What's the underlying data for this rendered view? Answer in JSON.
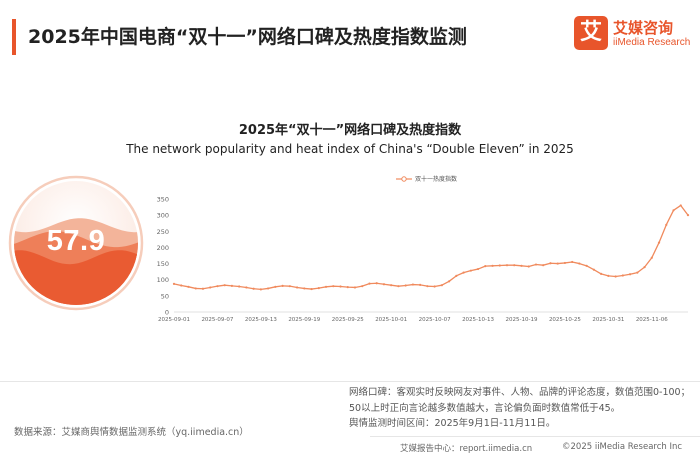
{
  "header": {
    "title": "2025年中国电商“双十一”网络口碑及热度指数监测",
    "accent_color": "#e8552b"
  },
  "logo": {
    "mark": "艾",
    "name_cn": "艾媒咨询",
    "name_en": "iiMedia Research"
  },
  "gauge": {
    "value": "57.9",
    "fill_level": 0.579,
    "colors": [
      "#f3b49a",
      "#ee7f59",
      "#e8552b"
    ]
  },
  "chart_data": {
    "type": "line",
    "title": "2025年“双十一”网络口碑及热度指数",
    "subtitle": "The network popularity and heat index of China's “Double Eleven” in 2025",
    "xlabel": "",
    "ylabel": "",
    "ylim": [
      0,
      350
    ],
    "yticks": [
      0,
      50,
      100,
      150,
      200,
      250,
      300,
      350
    ],
    "grid": false,
    "legend_position": "top-center",
    "xtick_labels": [
      "2025-09-01",
      "2025-09-07",
      "2025-09-13",
      "2025-09-19",
      "2025-09-25",
      "2025-10-01",
      "2025-10-07",
      "2025-10-13",
      "2025-10-19",
      "2025-10-25",
      "2025-10-31",
      "2025-11-06"
    ],
    "series": [
      {
        "name": "双十一热度指数",
        "color": "#f08a5d",
        "x": [
          "09-01",
          "09-02",
          "09-03",
          "09-04",
          "09-05",
          "09-06",
          "09-07",
          "09-08",
          "09-09",
          "09-10",
          "09-11",
          "09-12",
          "09-13",
          "09-14",
          "09-15",
          "09-16",
          "09-17",
          "09-18",
          "09-19",
          "09-20",
          "09-21",
          "09-22",
          "09-23",
          "09-24",
          "09-25",
          "09-26",
          "09-27",
          "09-28",
          "09-29",
          "09-30",
          "10-01",
          "10-02",
          "10-03",
          "10-04",
          "10-05",
          "10-06",
          "10-07",
          "10-08",
          "10-09",
          "10-10",
          "10-11",
          "10-12",
          "10-13",
          "10-14",
          "10-15",
          "10-16",
          "10-17",
          "10-18",
          "10-19",
          "10-20",
          "10-21",
          "10-22",
          "10-23",
          "10-24",
          "10-25",
          "10-26",
          "10-27",
          "10-28",
          "10-29",
          "10-30",
          "10-31",
          "11-01",
          "11-02",
          "11-03",
          "11-04",
          "11-05",
          "11-06",
          "11-07",
          "11-08",
          "11-09",
          "11-10",
          "11-11"
        ],
        "values": [
          87,
          82,
          78,
          73,
          72,
          76,
          80,
          83,
          81,
          79,
          76,
          72,
          70,
          73,
          78,
          81,
          80,
          76,
          73,
          71,
          74,
          78,
          80,
          79,
          77,
          76,
          80,
          88,
          89,
          86,
          83,
          80,
          82,
          85,
          84,
          80,
          79,
          83,
          95,
          112,
          122,
          128,
          133,
          142,
          143,
          144,
          145,
          145,
          143,
          141,
          147,
          145,
          151,
          150,
          152,
          155,
          150,
          143,
          131,
          118,
          112,
          110,
          113,
          117,
          122,
          139,
          168,
          215,
          270,
          315,
          330,
          300
        ]
      }
    ]
  },
  "notes": {
    "line1": "网络口碑：客观实时反映网友对事件、人物、品牌的评论态度，数值范围0-100；",
    "line2": "50以上时正向言论越多数值越大，言论偏负面时数值常低于45。",
    "line3": "舆情监测时间区间：2025年9月1日-11月11日。"
  },
  "source": "数据来源：艾媒商舆情数据监测系统（yq.iimedia.cn）",
  "footer": {
    "left": "艾媒报告中心：report.iimedia.cn",
    "right": "©2025  iiMedia Research  Inc"
  }
}
